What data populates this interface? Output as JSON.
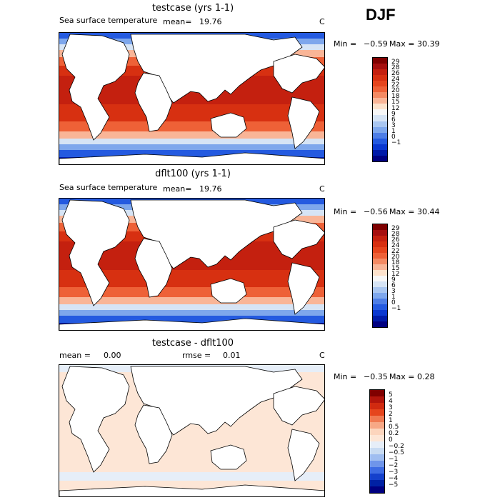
{
  "season": "DJF",
  "panels": [
    {
      "title": "testcase (yrs 1-1)",
      "left_label": "Sea surface temperature",
      "mean_label": "mean=",
      "mean_value": "19.76",
      "units": "C",
      "min_label": "Min =",
      "min_value": "−0.59",
      "max_label": "Max =",
      "max_value": "30.39",
      "colorbar_labels": [
        "29",
        "28",
        "26",
        "24",
        "22",
        "20",
        "18",
        "15",
        "12",
        "9",
        "6",
        "3",
        "1",
        "0",
        "−1"
      ]
    },
    {
      "title": "dflt100 (yrs 1-1)",
      "left_label": "Sea surface temperature",
      "mean_label": "mean=",
      "mean_value": "19.76",
      "units": "C",
      "min_label": "Min =",
      "min_value": "−0.56",
      "max_label": "Max =",
      "max_value": "30.44",
      "colorbar_labels": [
        "29",
        "28",
        "26",
        "24",
        "22",
        "20",
        "18",
        "15",
        "12",
        "9",
        "6",
        "3",
        "1",
        "0",
        "−1"
      ]
    },
    {
      "title": "testcase - dflt100",
      "mean_label": "mean =",
      "mean_value": "0.00",
      "rmse_label": "rmse =",
      "rmse_value": "0.01",
      "units": "C",
      "min_label": "Min =",
      "min_value": "−0.35",
      "max_label": "Max =",
      "max_value": "0.28",
      "colorbar_labels": [
        "5",
        "4",
        "3",
        "2",
        "1",
        "0.5",
        "0.2",
        "0",
        "−0.2",
        "−0.5",
        "−1",
        "−2",
        "−3",
        "−4",
        "−5"
      ]
    }
  ],
  "colors": {
    "sst_scale": [
      "#7f0000",
      "#a50f0f",
      "#c4200f",
      "#d73011",
      "#e5451d",
      "#ee6137",
      "#f48a63",
      "#f9b597",
      "#fde2cc",
      "#f7f7f7",
      "#d6e4f5",
      "#a9c6f0",
      "#7ea7ec",
      "#4e7ee6",
      "#245ae0",
      "#0a38d0",
      "#001aa8",
      "#000080"
    ],
    "diff_scale": [
      "#7f0000",
      "#b2150c",
      "#d12a10",
      "#e5451d",
      "#f07a52",
      "#f7a886",
      "#fcd5bd",
      "#fde6d6",
      "#e6eef8",
      "#c8dbf2",
      "#9fbdf0",
      "#6f95ea",
      "#3d6be3",
      "#1440cc",
      "#0021a4",
      "#000080"
    ]
  }
}
